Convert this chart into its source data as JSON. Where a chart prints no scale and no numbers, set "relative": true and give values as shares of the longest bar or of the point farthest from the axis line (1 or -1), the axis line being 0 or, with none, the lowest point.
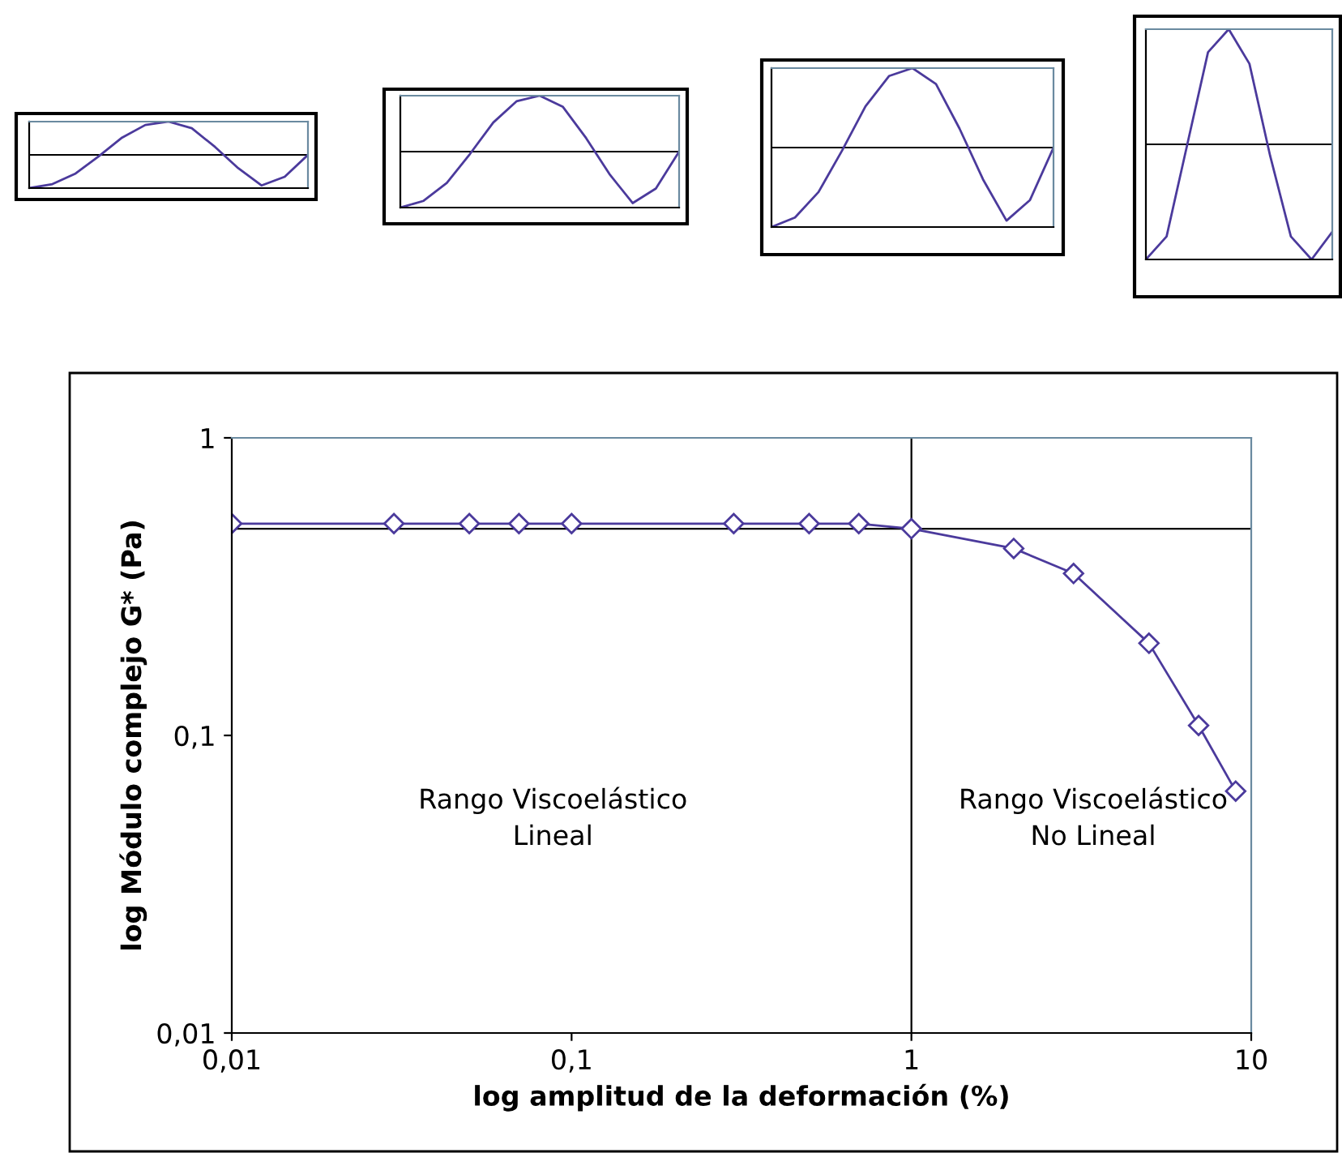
{
  "chart_data": [
    {
      "type": "line",
      "relative": true,
      "categories": [
        null,
        null,
        null,
        null,
        null,
        null,
        null,
        null,
        null,
        null,
        null,
        null,
        null
      ],
      "series": [
        {
          "color": "#4b3a9c",
          "values": [
            0,
            0.06,
            0.22,
            0.48,
            0.76,
            0.95,
            1,
            0.9,
            0.62,
            0.3,
            0.04,
            0.17,
            0.5
          ]
        }
      ],
      "ref_lines": [
        {
          "axis": "y",
          "value": 0.5,
          "color": "#000000"
        }
      ]
    },
    {
      "type": "line",
      "relative": true,
      "categories": [
        null,
        null,
        null,
        null,
        null,
        null,
        null,
        null,
        null,
        null,
        null,
        null,
        null
      ],
      "series": [
        {
          "color": "#4b3a9c",
          "values": [
            0,
            0.06,
            0.22,
            0.48,
            0.76,
            0.95,
            1,
            0.9,
            0.62,
            0.3,
            0.04,
            0.17,
            0.5
          ]
        }
      ],
      "ref_lines": [
        {
          "axis": "y",
          "value": 0.5,
          "color": "#000000"
        }
      ]
    },
    {
      "type": "line",
      "relative": true,
      "categories": [
        null,
        null,
        null,
        null,
        null,
        null,
        null,
        null,
        null,
        null,
        null,
        null,
        null
      ],
      "series": [
        {
          "color": "#4b3a9c",
          "values": [
            0,
            0.06,
            0.22,
            0.48,
            0.76,
            0.95,
            1,
            0.9,
            0.62,
            0.3,
            0.04,
            0.17,
            0.5
          ]
        }
      ],
      "ref_lines": [
        {
          "axis": "y",
          "value": 0.5,
          "color": "#000000"
        }
      ]
    },
    {
      "type": "line",
      "relative": true,
      "categories": [
        null,
        null,
        null,
        null,
        null,
        null,
        null,
        null,
        null,
        null
      ],
      "series": [
        {
          "color": "#4b3a9c",
          "values": [
            0,
            0.1,
            0.5,
            0.9,
            1,
            0.85,
            0.45,
            0.1,
            0,
            0.12
          ]
        }
      ],
      "ref_lines": [
        {
          "axis": "y",
          "value": 0.5,
          "color": "#000000"
        }
      ]
    },
    {
      "type": "line",
      "xlabel": "log amplitud de la deformación (%)",
      "ylabel": "log Módulo complejo G* (Pa)",
      "x": [
        0.01,
        0.03,
        0.05,
        0.07,
        0.1,
        0.3,
        0.5,
        0.7,
        1,
        2,
        3,
        5,
        7,
        9
      ],
      "series": [
        {
          "color": "#4b3a9c",
          "values": [
            0.515,
            0.515,
            0.515,
            0.515,
            0.515,
            0.515,
            0.515,
            0.515,
            0.495,
            0.425,
            0.35,
            0.204,
            0.108,
            0.065
          ]
        }
      ],
      "log": "xy",
      "xlim": [
        0.01,
        10
      ],
      "ylim": [
        0.01,
        1
      ],
      "xticks": [
        {
          "value": 0.01,
          "label": "0,01"
        },
        {
          "value": 0.1,
          "label": "0,1"
        },
        1,
        10
      ],
      "yticks": [
        {
          "value": 0.01,
          "label": "0,01"
        },
        {
          "value": 0.1,
          "label": "0,1"
        },
        1
      ],
      "ref_lines": [
        {
          "axis": "y",
          "value": 0.495,
          "color": "#000000"
        },
        {
          "axis": "x",
          "value": 1,
          "color": "#000000"
        }
      ],
      "annotations": [
        "Rango Viscoelástico\nLineal",
        "Rango Viscoelástico\nNo Lineal"
      ],
      "marker": "diamond",
      "line_style": "solid"
    }
  ]
}
